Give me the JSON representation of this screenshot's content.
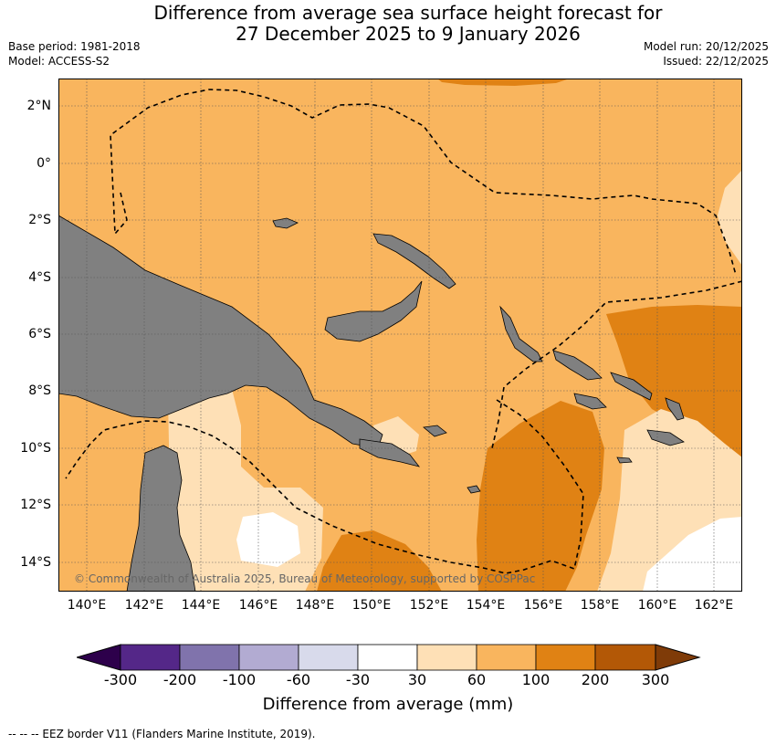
{
  "header": {
    "title_line1": "Difference from average sea surface height forecast for",
    "title_line2": "27 December 2025 to 9 January 2026",
    "base_period": "Base period: 1981-2018",
    "model": "Model: ACCESS-S2",
    "model_run": "Model run: 20/12/2025",
    "issued": "Issued: 22/12/2025"
  },
  "map": {
    "lat_labels": [
      "2°N",
      "0°",
      "2°S",
      "4°S",
      "6°S",
      "8°S",
      "10°S",
      "12°S",
      "14°S"
    ],
    "lon_labels": [
      "140°E",
      "142°E",
      "144°E",
      "146°E",
      "148°E",
      "150°E",
      "152°E",
      "154°E",
      "156°E",
      "158°E",
      "160°E",
      "162°E"
    ],
    "copyright": "© Commonwealth of Australia 2025, Bureau of Meteorology, supported by COSPPac",
    "colors": {
      "land": "#808080",
      "band_30_60": "#fee0b6",
      "band_60_100": "#f9b55e",
      "band_100_200": "#e08214",
      "band_m30_30": "#ffffff"
    }
  },
  "colorbar": {
    "tick_labels": [
      "-300",
      "-200",
      "-100",
      "-60",
      "-30",
      "30",
      "60",
      "100",
      "200",
      "300"
    ],
    "colors": [
      "#2d004b",
      "#542788",
      "#8073ac",
      "#b2abd2",
      "#d8daeb",
      "#ffffff",
      "#fee0b6",
      "#f9b55e",
      "#e08214",
      "#b35806",
      "#7f3b08"
    ],
    "label": "Difference from average (mm)"
  },
  "footnote": "--  --  -- EEZ border V11 (Flanders Marine Institute, 2019)."
}
